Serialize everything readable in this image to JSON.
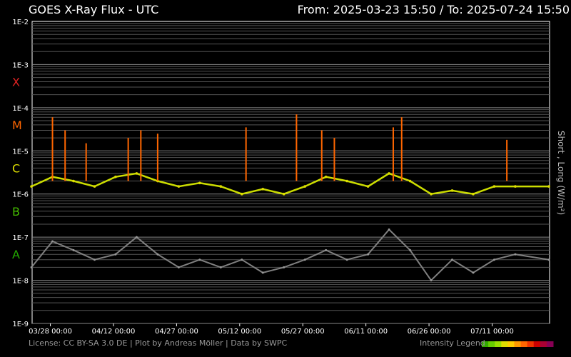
{
  "header": {
    "title": "GOES X-Ray Flux - UTC",
    "range": "From: 2025-03-23 15:50  /  To: 2025-07-24 15:50"
  },
  "footer": {
    "license": "License: CC BY-SA 3.0 DE | Plot by Andreas Möller | Data by SWPC",
    "legend_label": "Intensity Legend",
    "legend_colors": [
      "#33aa00",
      "#66cc00",
      "#99dd00",
      "#dddd00",
      "#ffcc00",
      "#ff9900",
      "#ff6600",
      "#ee3300",
      "#cc0000",
      "#aa0033",
      "#880055"
    ]
  },
  "chart_data": {
    "type": "line",
    "title": "GOES X-Ray Flux - UTC",
    "ylabel": "Short , Long (W/m²)",
    "yscale": "log",
    "ylim": [
      1e-09,
      0.01
    ],
    "y_tick_labels": [
      "1E-2",
      "1E-3",
      "1E-4",
      "1E-5",
      "1E-6",
      "1E-7",
      "1E-8",
      "1E-9"
    ],
    "x_tick_labels": [
      "03/28 00:00",
      "04/12 00:00",
      "04/27 00:00",
      "05/12 00:00",
      "05/27 00:00",
      "06/11 00:00",
      "06/26 00:00",
      "07/11 00:00"
    ],
    "xlim": [
      "2025-03-23 15:50",
      "2025-07-24 15:50"
    ],
    "flare_classes": [
      {
        "label": "X",
        "color": "#dd2222"
      },
      {
        "label": "M",
        "color": "#ff6600"
      },
      {
        "label": "C",
        "color": "#dddd00"
      },
      {
        "label": "B",
        "color": "#44bb00"
      },
      {
        "label": "A",
        "color": "#22aa00"
      }
    ],
    "grid": true,
    "legend": "bottom-right",
    "series": [
      {
        "name": "Long",
        "x": [
          "2025-03-23",
          "2025-03-28",
          "2025-04-02",
          "2025-04-07",
          "2025-04-12",
          "2025-04-17",
          "2025-04-22",
          "2025-04-27",
          "2025-05-02",
          "2025-05-07",
          "2025-05-12",
          "2025-05-17",
          "2025-05-22",
          "2025-05-27",
          "2025-06-01",
          "2025-06-06",
          "2025-06-11",
          "2025-06-16",
          "2025-06-21",
          "2025-06-26",
          "2025-07-01",
          "2025-07-06",
          "2025-07-11",
          "2025-07-16",
          "2025-07-24"
        ],
        "y": [
          1.5e-06,
          2.5e-06,
          2e-06,
          1.5e-06,
          2.5e-06,
          3e-06,
          2e-06,
          1.5e-06,
          1.8e-06,
          1.5e-06,
          1e-06,
          1.3e-06,
          1e-06,
          1.5e-06,
          2.5e-06,
          2e-06,
          1.5e-06,
          3e-06,
          2e-06,
          1e-06,
          1.2e-06,
          1e-06,
          1.5e-06,
          1.5e-06,
          1.5e-06
        ]
      },
      {
        "name": "Short",
        "x": [
          "2025-03-23",
          "2025-03-28",
          "2025-04-02",
          "2025-04-07",
          "2025-04-12",
          "2025-04-17",
          "2025-04-22",
          "2025-04-27",
          "2025-05-02",
          "2025-05-07",
          "2025-05-12",
          "2025-05-17",
          "2025-05-22",
          "2025-05-27",
          "2025-06-01",
          "2025-06-06",
          "2025-06-11",
          "2025-06-16",
          "2025-06-21",
          "2025-06-26",
          "2025-07-01",
          "2025-07-06",
          "2025-07-11",
          "2025-07-16",
          "2025-07-24"
        ],
        "y": [
          2e-08,
          8e-08,
          5e-08,
          3e-08,
          4e-08,
          1e-07,
          4e-08,
          2e-08,
          3e-08,
          2e-08,
          3e-08,
          1.5e-08,
          2e-08,
          3e-08,
          5e-08,
          3e-08,
          4e-08,
          1.5e-07,
          5e-08,
          1e-08,
          3e-08,
          1.5e-08,
          3e-08,
          4e-08,
          3e-08
        ]
      }
    ],
    "peaks": [
      {
        "x": "2025-03-28",
        "y": 6e-05
      },
      {
        "x": "2025-03-31",
        "y": 3e-05
      },
      {
        "x": "2025-04-05",
        "y": 1.5e-05
      },
      {
        "x": "2025-04-15",
        "y": 2e-05
      },
      {
        "x": "2025-04-18",
        "y": 3e-05
      },
      {
        "x": "2025-04-22",
        "y": 2.5e-05
      },
      {
        "x": "2025-05-13",
        "y": 3.5e-05
      },
      {
        "x": "2025-05-25",
        "y": 7e-05
      },
      {
        "x": "2025-05-31",
        "y": 3e-05
      },
      {
        "x": "2025-06-03",
        "y": 2e-05
      },
      {
        "x": "2025-06-17",
        "y": 3.5e-05
      },
      {
        "x": "2025-06-19",
        "y": 6e-05
      },
      {
        "x": "2025-07-14",
        "y": 1.8e-05
      }
    ]
  }
}
